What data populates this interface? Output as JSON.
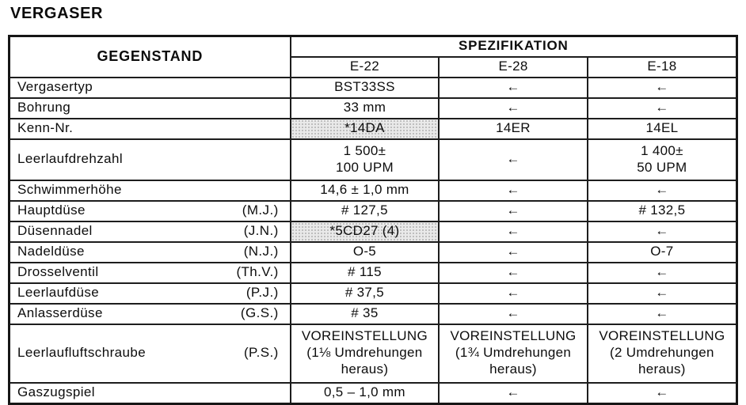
{
  "title": "VERGASER",
  "table": {
    "header": {
      "item_col": "GEGENSTAND",
      "spec_col": "SPEZIFIKATION",
      "models": [
        "E-22",
        "E-28",
        "E-18"
      ]
    },
    "arrow_symbol": "←",
    "rows": [
      {
        "item": "Vergasertyp",
        "abbr": "",
        "values": [
          "BST33SS",
          "←",
          "←"
        ],
        "shaded": [
          false,
          false,
          false
        ]
      },
      {
        "item": "Bohrung",
        "abbr": "",
        "values": [
          "33 mm",
          "←",
          "←"
        ],
        "shaded": [
          false,
          false,
          false
        ]
      },
      {
        "item": "Kenn-Nr.",
        "abbr": "",
        "values": [
          "*14DA",
          "14ER",
          "14EL"
        ],
        "shaded": [
          true,
          false,
          false
        ]
      },
      {
        "item": "Leerlaufdrehzahl",
        "abbr": "",
        "values": [
          "1 500±\n100 UPM",
          "←",
          "1 400±\n50 UPM"
        ],
        "shaded": [
          false,
          false,
          false
        ]
      },
      {
        "item": "Schwimmerhöhe",
        "abbr": "",
        "values": [
          "14,6 ± 1,0 mm",
          "←",
          "←"
        ],
        "shaded": [
          false,
          false,
          false
        ]
      },
      {
        "item": "Hauptdüse",
        "abbr": "(M.J.)",
        "values": [
          "# 127,5",
          "←",
          "# 132,5"
        ],
        "shaded": [
          false,
          false,
          false
        ]
      },
      {
        "item": "Düsennadel",
        "abbr": "(J.N.)",
        "values": [
          "*5CD27 (4)",
          "←",
          "←"
        ],
        "shaded": [
          true,
          false,
          false
        ]
      },
      {
        "item": "Nadeldüse",
        "abbr": "(N.J.)",
        "values": [
          "O-5",
          "←",
          "O-7"
        ],
        "shaded": [
          false,
          false,
          false
        ]
      },
      {
        "item": "Drosselventil",
        "abbr": "(Th.V.)",
        "values": [
          "# 115",
          "←",
          "←"
        ],
        "shaded": [
          false,
          false,
          false
        ]
      },
      {
        "item": "Leerlaufdüse",
        "abbr": "(P.J.)",
        "values": [
          "# 37,5",
          "←",
          "←"
        ],
        "shaded": [
          false,
          false,
          false
        ]
      },
      {
        "item": "Anlasserdüse",
        "abbr": "(G.S.)",
        "values": [
          "# 35",
          "←",
          "←"
        ],
        "shaded": [
          false,
          false,
          false
        ]
      },
      {
        "item": "Leerlaufluftschraube",
        "abbr": "(P.S.)",
        "values": [
          "VOREINSTELLUNG\n(1⅛ Umdrehungen\nheraus)",
          "VOREINSTELLUNG\n(1¾ Umdrehungen\nheraus)",
          "VOREINSTELLUNG\n(2 Umdrehungen\nheraus)"
        ],
        "shaded": [
          false,
          false,
          false
        ]
      },
      {
        "item": "Gaszugspiel",
        "abbr": "",
        "values": [
          "0,5 – 1,0 mm",
          "←",
          "←"
        ],
        "shaded": [
          false,
          false,
          false
        ]
      }
    ]
  }
}
